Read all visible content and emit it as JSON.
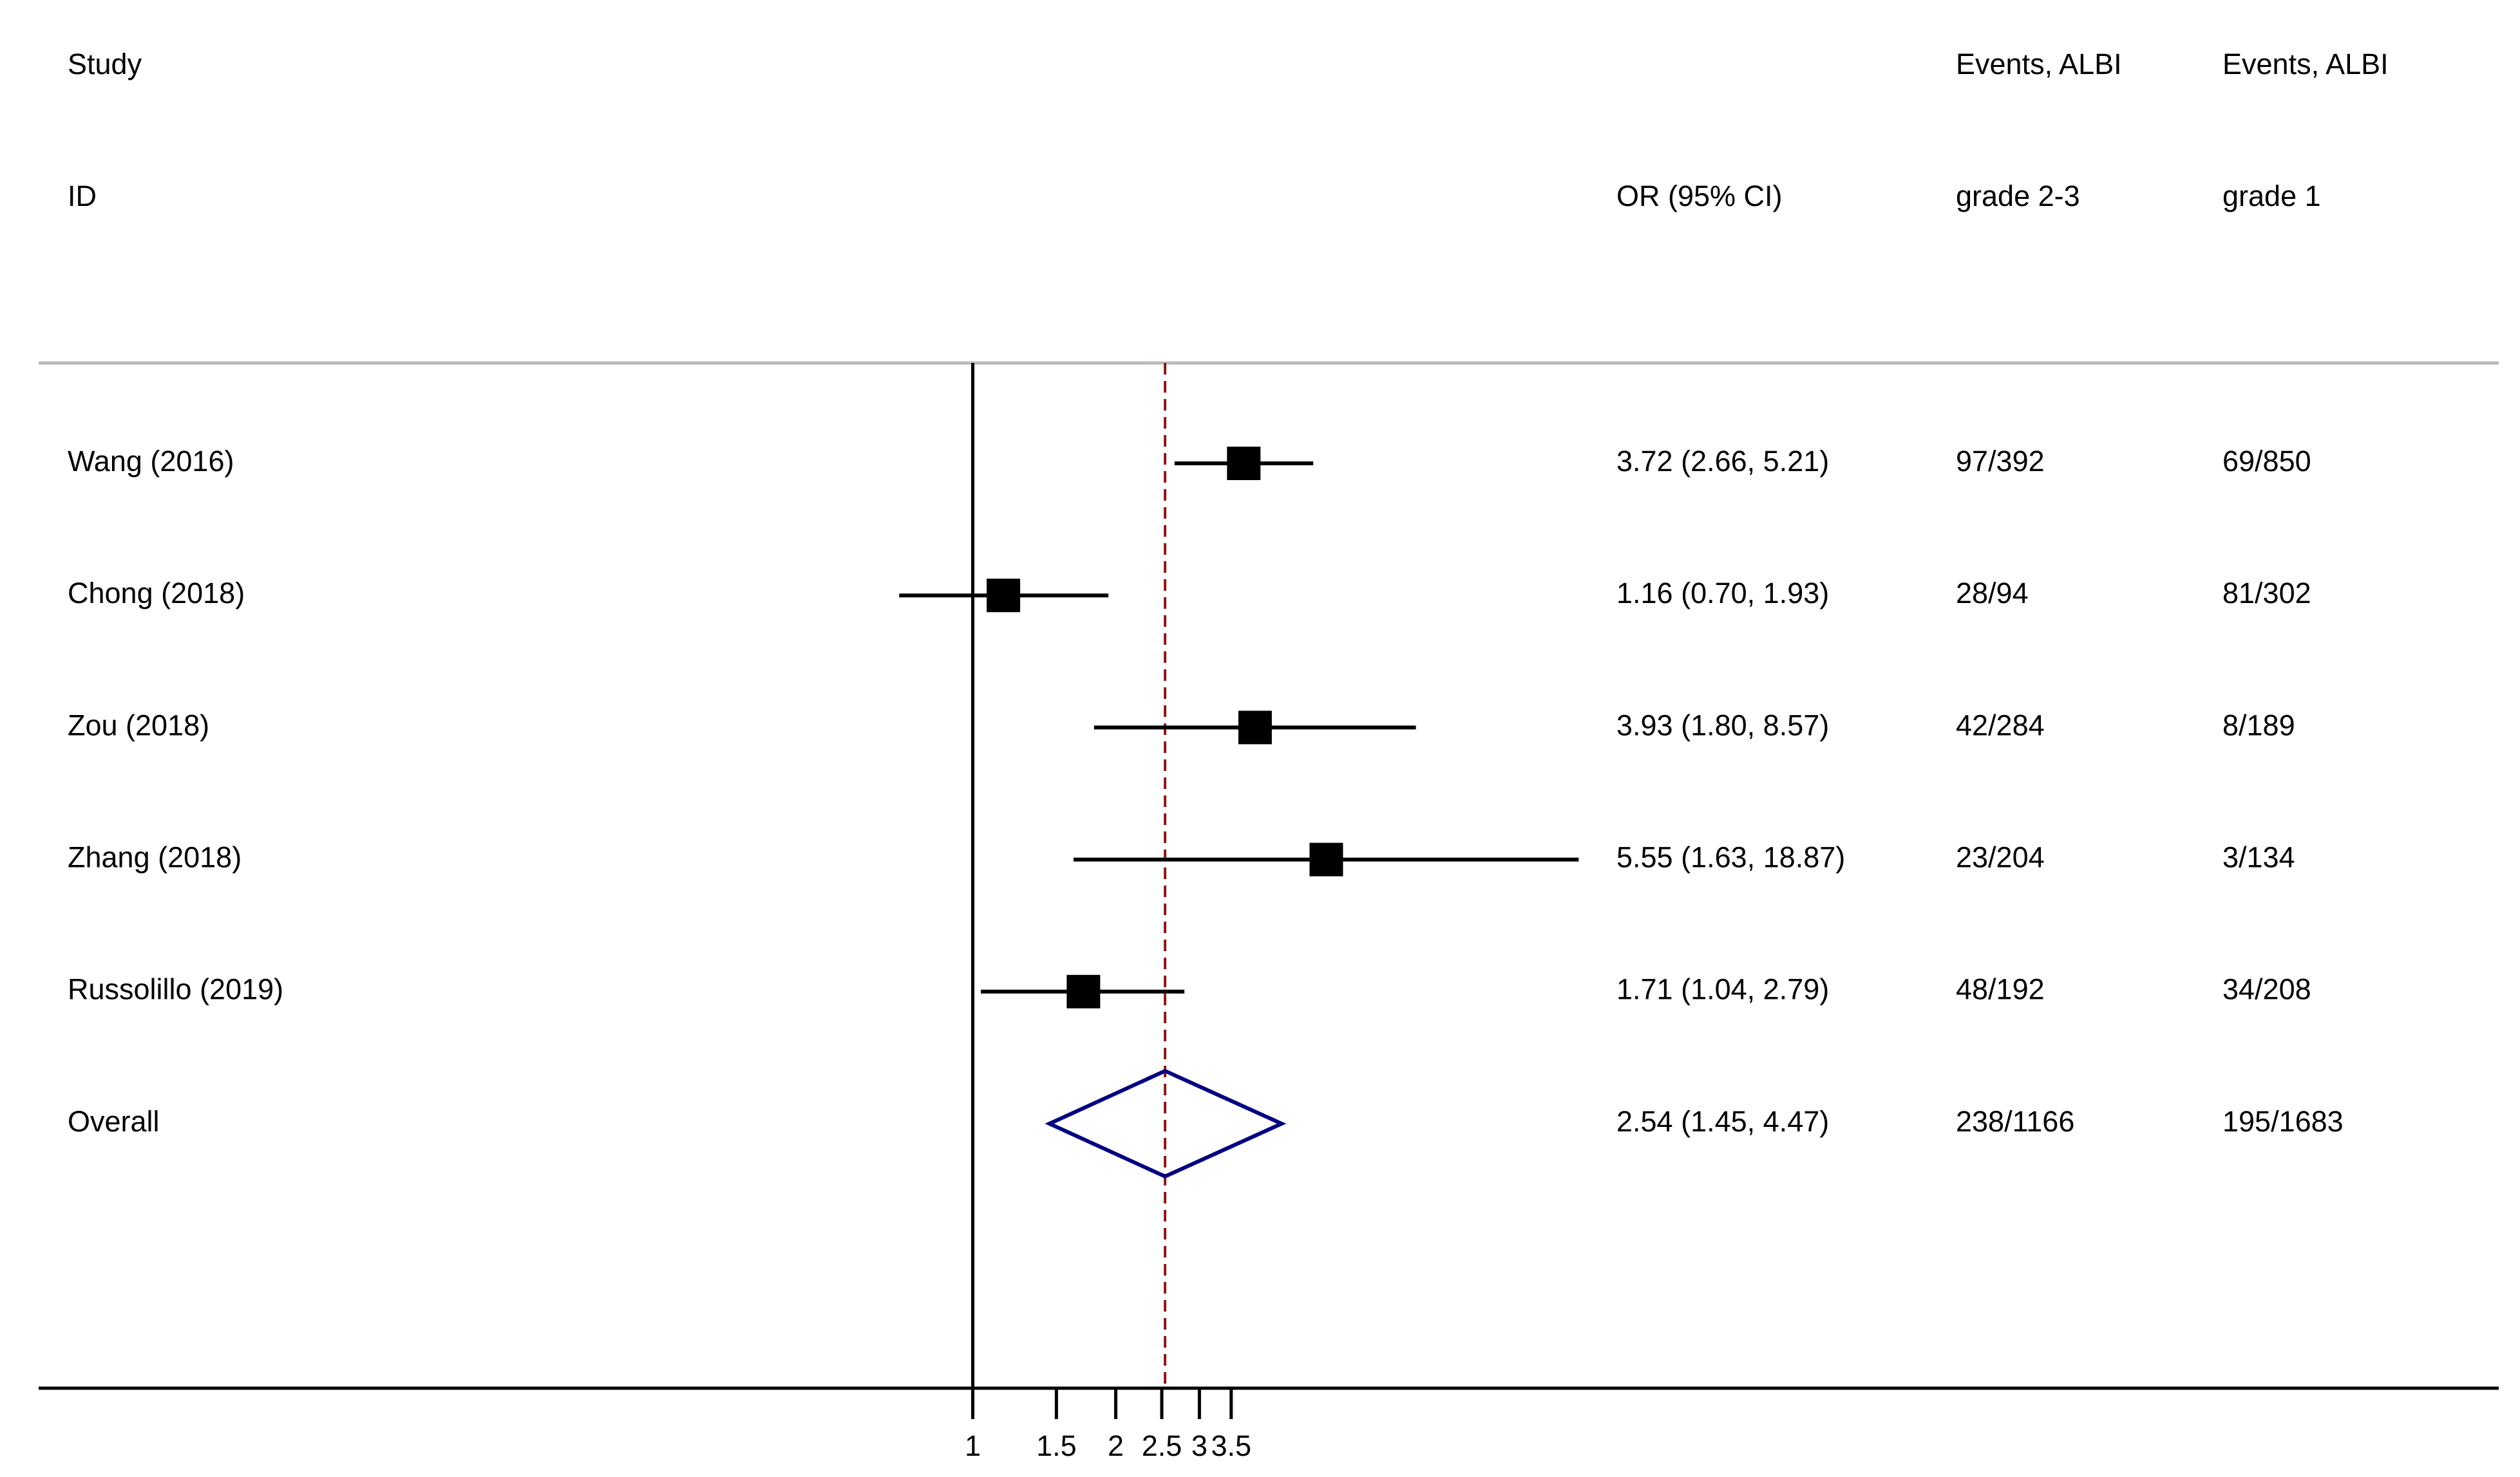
{
  "chart_data": {
    "type": "forest",
    "header_rows": [
      [
        "Study",
        "",
        "Events, ALBI",
        "Events, ALBI"
      ],
      [
        "ID",
        "OR (95% CI)",
        "grade 2-3",
        "grade 1"
      ]
    ],
    "categories": [
      "Wang (2016)",
      "Chong (2018)",
      "Zou (2018)",
      "Zhang (2018)",
      "Russolillo (2019)",
      "Overall"
    ],
    "values": [
      3.72,
      1.16,
      3.93,
      5.55,
      1.71,
      2.54
    ],
    "lower": [
      2.66,
      0.7,
      1.8,
      1.63,
      1.04,
      1.45
    ],
    "upper": [
      5.21,
      1.93,
      8.57,
      18.87,
      2.79,
      4.47
    ],
    "value_labels": [
      "3.72 (2.66, 5.21)",
      "1.16 (0.70, 1.93)",
      "3.93 (1.80, 8.57)",
      "5.55 (1.63, 18.87)",
      "1.71 (1.04, 2.79)",
      "2.54 (1.45, 4.47)"
    ],
    "events_grade_2_3": [
      "97/392",
      "28/94",
      "42/284",
      "23/204",
      "48/192",
      "238/1166"
    ],
    "events_grade_1": [
      "69/850",
      "81/302",
      "8/189",
      "3/134",
      "34/208",
      "195/1683"
    ],
    "xlim": [
      0.68,
      20
    ],
    "xticks": [
      1,
      1.5,
      2,
      2.5,
      3,
      3.5
    ],
    "log_scale": true,
    "reference_line": 1,
    "color": "#000000",
    "overall_color": "#000080",
    "overall_line_color": "#8b1a1a"
  }
}
